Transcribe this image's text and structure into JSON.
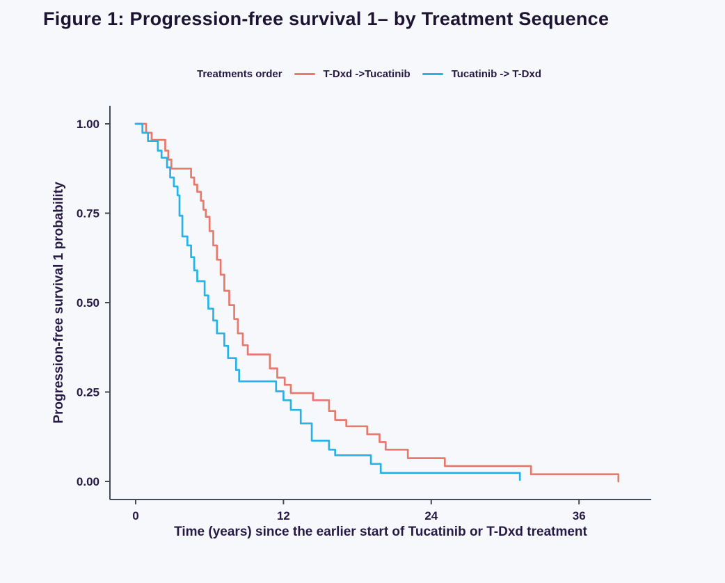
{
  "title": "Figure 1: Progression-free survival 1– by Treatment Sequence",
  "colors": {
    "text": "#261a45",
    "title": "#1d1433",
    "axis": "#454a57",
    "background": "#f7f8fb",
    "series_tdxd_first": "#e8796d",
    "series_tucatinib_first": "#27b3e8"
  },
  "legend": {
    "title": "Treatments order",
    "items": [
      {
        "label": "T-Dxd ->Tucatinib",
        "color": "#e8796d"
      },
      {
        "label": "Tucatinib -> T-Dxd",
        "color": "#27b3e8"
      }
    ]
  },
  "chart_data": {
    "type": "line",
    "variant": "kaplan-meier-step",
    "title": "Figure 1: Progression-free survival 1– by Treatment Sequence",
    "xlabel": "Time (years) since the earlier start of Tucatinib or T-Dxd treatment",
    "ylabel": "Progression-free survival 1 probability",
    "x_ticks": [
      0,
      12,
      24,
      36
    ],
    "y_ticks": [
      1.0,
      0.75,
      0.5,
      0.25,
      0.0
    ],
    "xlim": [
      -2.1,
      41.9
    ],
    "ylim": [
      -0.05,
      1.05
    ],
    "grid": false,
    "legend_position": "top",
    "series": [
      {
        "name": "T-Dxd ->Tucatinib",
        "color": "#e8796d",
        "points": [
          [
            0,
            1.0
          ],
          [
            0.85,
            0.975
          ],
          [
            1.3,
            0.955
          ],
          [
            2.4,
            0.925
          ],
          [
            2.65,
            0.9
          ],
          [
            2.9,
            0.875
          ],
          [
            4.5,
            0.85
          ],
          [
            4.75,
            0.83
          ],
          [
            5.0,
            0.81
          ],
          [
            5.3,
            0.785
          ],
          [
            5.5,
            0.76
          ],
          [
            5.7,
            0.74
          ],
          [
            6.0,
            0.7
          ],
          [
            6.3,
            0.66
          ],
          [
            6.6,
            0.62
          ],
          [
            6.9,
            0.578
          ],
          [
            7.2,
            0.533
          ],
          [
            7.6,
            0.493
          ],
          [
            8.0,
            0.454
          ],
          [
            8.3,
            0.414
          ],
          [
            8.7,
            0.381
          ],
          [
            9.1,
            0.355
          ],
          [
            10.9,
            0.316
          ],
          [
            11.5,
            0.29
          ],
          [
            12.1,
            0.27
          ],
          [
            12.6,
            0.247
          ],
          [
            14.4,
            0.227
          ],
          [
            15.7,
            0.197
          ],
          [
            16.2,
            0.172
          ],
          [
            17.1,
            0.154
          ],
          [
            18.8,
            0.132
          ],
          [
            19.8,
            0.11
          ],
          [
            20.3,
            0.089
          ],
          [
            22.1,
            0.065
          ],
          [
            25.1,
            0.043
          ],
          [
            32.1,
            0.02
          ],
          [
            39.2,
            0.0
          ]
        ]
      },
      {
        "name": "Tucatinib -> T-Dxd",
        "color": "#27b3e8",
        "points": [
          [
            0,
            1.0
          ],
          [
            0.55,
            0.975
          ],
          [
            1.0,
            0.952
          ],
          [
            1.8,
            0.925
          ],
          [
            2.1,
            0.905
          ],
          [
            2.55,
            0.878
          ],
          [
            2.8,
            0.85
          ],
          [
            3.1,
            0.825
          ],
          [
            3.4,
            0.8
          ],
          [
            3.56,
            0.743
          ],
          [
            3.79,
            0.685
          ],
          [
            4.2,
            0.66
          ],
          [
            4.5,
            0.627
          ],
          [
            4.75,
            0.59
          ],
          [
            5.0,
            0.56
          ],
          [
            5.6,
            0.52
          ],
          [
            5.9,
            0.483
          ],
          [
            6.3,
            0.45
          ],
          [
            6.6,
            0.414
          ],
          [
            7.2,
            0.379
          ],
          [
            7.5,
            0.345
          ],
          [
            8.15,
            0.312
          ],
          [
            8.4,
            0.28
          ],
          [
            11.4,
            0.252
          ],
          [
            12.0,
            0.227
          ],
          [
            12.6,
            0.2
          ],
          [
            13.4,
            0.162
          ],
          [
            14.3,
            0.114
          ],
          [
            15.7,
            0.089
          ],
          [
            16.2,
            0.073
          ],
          [
            19.1,
            0.049
          ],
          [
            19.9,
            0.024
          ],
          [
            31.2,
            0.004
          ]
        ]
      }
    ]
  }
}
